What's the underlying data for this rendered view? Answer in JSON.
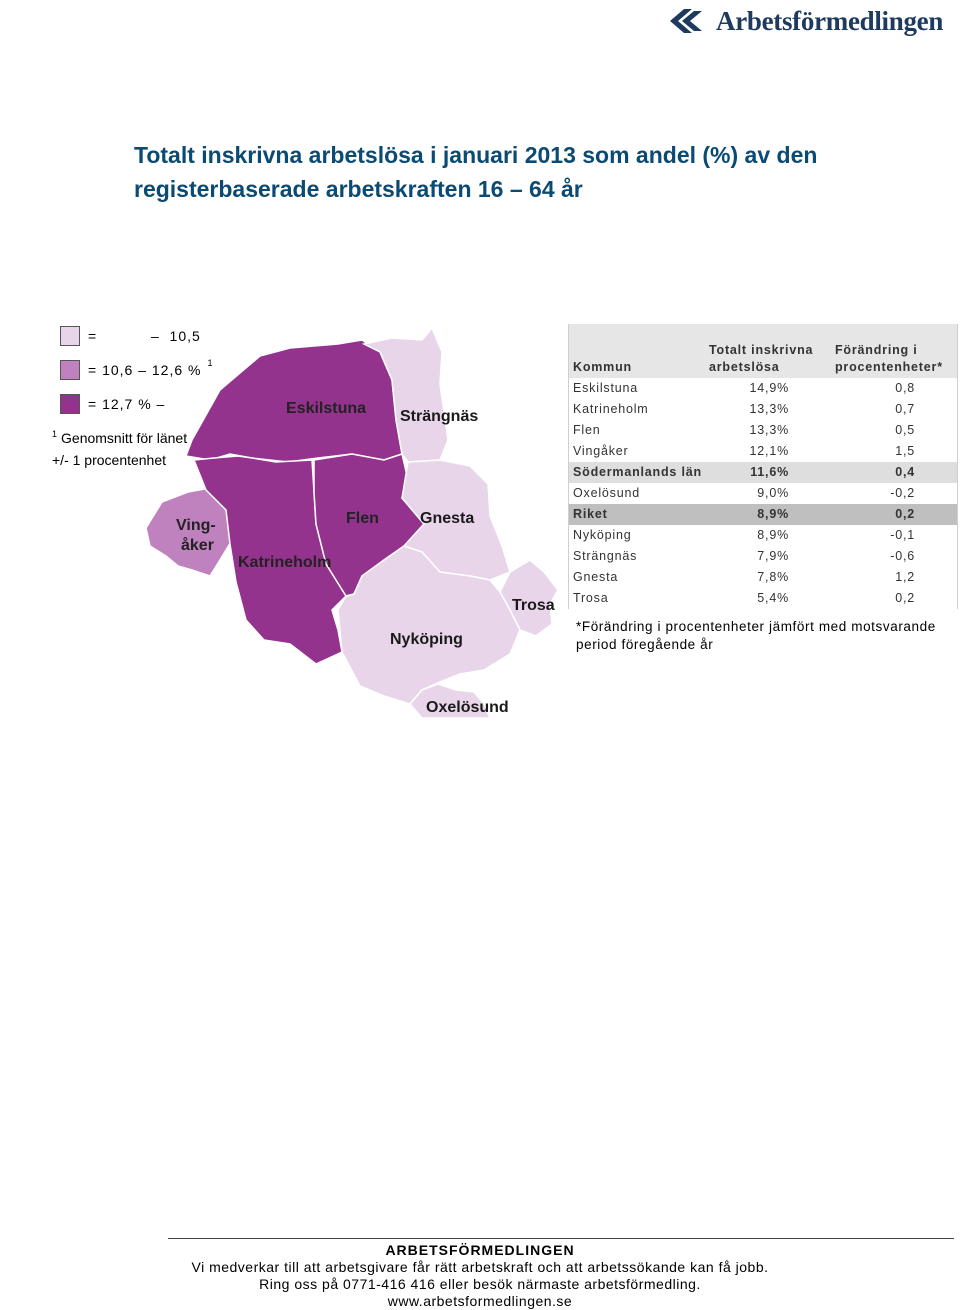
{
  "header": {
    "logo_text": "Arbetsförmedlingen",
    "logo_icon": "arbetsformedlingen-logo-icon",
    "brand_color": "#1e3a5f"
  },
  "title": {
    "line1": "Totalt inskrivna arbetslösa i januari 2013 som andel (%) av den",
    "line2": "registerbaserade arbetskraften 16 – 64 år",
    "color": "#0b4a73"
  },
  "legend": {
    "items": [
      {
        "label": "=           –  10,5",
        "color": "#e8d5ea"
      },
      {
        "label": "= 10,6 – 12,6 %",
        "color": "#c081bf",
        "sup": "1"
      },
      {
        "label": "= 12,7 % –",
        "color": "#94338d"
      }
    ],
    "note_sup": "1",
    "note_line1": "Genomsnitt för länet",
    "note_line2": "+/- 1 procentenhet"
  },
  "map": {
    "regions": [
      {
        "name": "Eskilstuna",
        "class": "high",
        "color": "#94338d"
      },
      {
        "name": "Katrineholm",
        "class": "high",
        "color": "#94338d"
      },
      {
        "name": "Flen",
        "class": "high",
        "color": "#94338d"
      },
      {
        "name": "Vingåker",
        "class": "mid",
        "color": "#c081bf"
      },
      {
        "name": "Strängnäs",
        "class": "low",
        "color": "#e8d5ea"
      },
      {
        "name": "Gnesta",
        "class": "low",
        "color": "#e8d5ea"
      },
      {
        "name": "Trosa",
        "class": "low",
        "color": "#e8d5ea"
      },
      {
        "name": "Nyköping",
        "class": "low",
        "color": "#e8d5ea"
      },
      {
        "name": "Oxelösund",
        "class": "low",
        "color": "#e8d5ea"
      }
    ],
    "labels": {
      "eskilstuna": "Eskilstuna",
      "strangnas": "Strängnäs",
      "vingaker_1": "Ving-",
      "vingaker_2": "åker",
      "flen": "Flen",
      "gnesta": "Gnesta",
      "katrineholm": "Katrineholm",
      "trosa": "Trosa",
      "nykoping": "Nyköping",
      "oxelosund": "Oxelösund"
    }
  },
  "table": {
    "headers": {
      "kommun": "Kommun",
      "totalt_1": "Totalt inskrivna",
      "totalt_2": "arbetslösa",
      "forandring_1": "Förändring i",
      "forandring_2": "procentenheter*"
    },
    "rows": [
      {
        "kommun": "Eskilstuna",
        "andel": "14,9%",
        "forandring": "0,8"
      },
      {
        "kommun": "Katrineholm",
        "andel": "13,3%",
        "forandring": "0,7"
      },
      {
        "kommun": "Flen",
        "andel": "13,3%",
        "forandring": "0,5"
      },
      {
        "kommun": "Vingåker",
        "andel": "12,1%",
        "forandring": "1,5"
      },
      {
        "kommun": "Södermanlands län",
        "andel": "11,6%",
        "forandring": "0,4"
      },
      {
        "kommun": "Oxelösund",
        "andel": "9,0%",
        "forandring": "-0,2"
      },
      {
        "kommun": "Riket",
        "andel": "8,9%",
        "forandring": "0,2"
      },
      {
        "kommun": "Nyköping",
        "andel": "8,9%",
        "forandring": "-0,1"
      },
      {
        "kommun": "Strängnäs",
        "andel": "7,9%",
        "forandring": "-0,6"
      },
      {
        "kommun": "Gnesta",
        "andel": "7,8%",
        "forandring": "1,2"
      },
      {
        "kommun": "Trosa",
        "andel": "5,4%",
        "forandring": "0,2"
      }
    ],
    "footnote": "*Förändring i procentenheter jämfört med motsvarande period föregående år"
  },
  "footer": {
    "org": "ARBETSFÖRMEDLINGEN",
    "line1": "Vi medverkar till att arbetsgivare får rätt arbetskraft och att arbetssökande kan få jobb.",
    "line2": "Ring oss på 0771-416 416 eller besök närmaste arbetsförmedling.",
    "url": "www.arbetsformedlingen.se"
  }
}
